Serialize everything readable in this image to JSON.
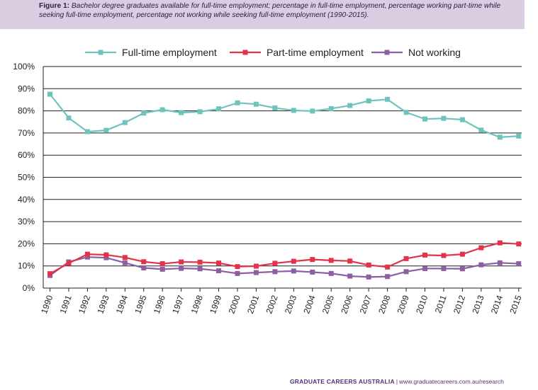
{
  "figure": {
    "label": "Figure 1:",
    "caption": "Bachelor degree graduates available for full-time employment; percentage in full-time employment, percentage working part-time while seeking full-time employment, percentage not working while seeking full-time employment (1990-2015)."
  },
  "footer": {
    "org": "GRADUATE CAREERS AUSTRALIA",
    "separator": "|",
    "url": "www.graduatecareers.com.au/research"
  },
  "chart_data": {
    "type": "line",
    "title": "",
    "xlabel": "",
    "ylabel": "",
    "ylim": [
      0,
      100
    ],
    "y_ticks": [
      "0%",
      "10%",
      "20%",
      "30%",
      "40%",
      "50%",
      "60%",
      "70%",
      "80%",
      "90%",
      "100%"
    ],
    "grid": "horizontal",
    "legend_position": "top",
    "categories": [
      "1990",
      "1991",
      "1992",
      "1993",
      "1994",
      "1995",
      "1996",
      "1997",
      "1998",
      "1999",
      "2000",
      "2001",
      "2002",
      "2003",
      "2004",
      "2005",
      "2006",
      "2007",
      "2008",
      "2009",
      "2010",
      "2011",
      "2012",
      "2013",
      "2014",
      "2015"
    ],
    "series": [
      {
        "name": "Full-time employment",
        "color": "#6ec4bd",
        "values": [
          87.5,
          76.8,
          70.6,
          71.2,
          74.7,
          79.0,
          80.5,
          79.2,
          79.6,
          80.9,
          83.6,
          83.0,
          81.3,
          80.2,
          79.9,
          81.0,
          82.4,
          84.5,
          85.2,
          79.3,
          76.3,
          76.6,
          76.0,
          71.3,
          68.1,
          68.6
        ]
      },
      {
        "name": "Part-time employment",
        "color": "#e2334b",
        "values": [
          6.5,
          11.2,
          15.3,
          15.0,
          13.8,
          11.9,
          11.0,
          11.8,
          11.7,
          11.3,
          9.7,
          9.9,
          11.2,
          12.1,
          12.9,
          12.5,
          12.2,
          10.4,
          9.5,
          13.3,
          14.9,
          14.7,
          15.3,
          18.2,
          20.4,
          19.9
        ]
      },
      {
        "name": "Not working",
        "color": "#8c5ea2",
        "values": [
          5.7,
          11.8,
          14.0,
          13.7,
          11.4,
          9.1,
          8.5,
          8.9,
          8.7,
          7.8,
          6.6,
          7.0,
          7.4,
          7.7,
          7.2,
          6.6,
          5.4,
          5.0,
          5.2,
          7.4,
          8.8,
          8.8,
          8.7,
          10.5,
          11.4,
          11.0
        ]
      }
    ]
  }
}
